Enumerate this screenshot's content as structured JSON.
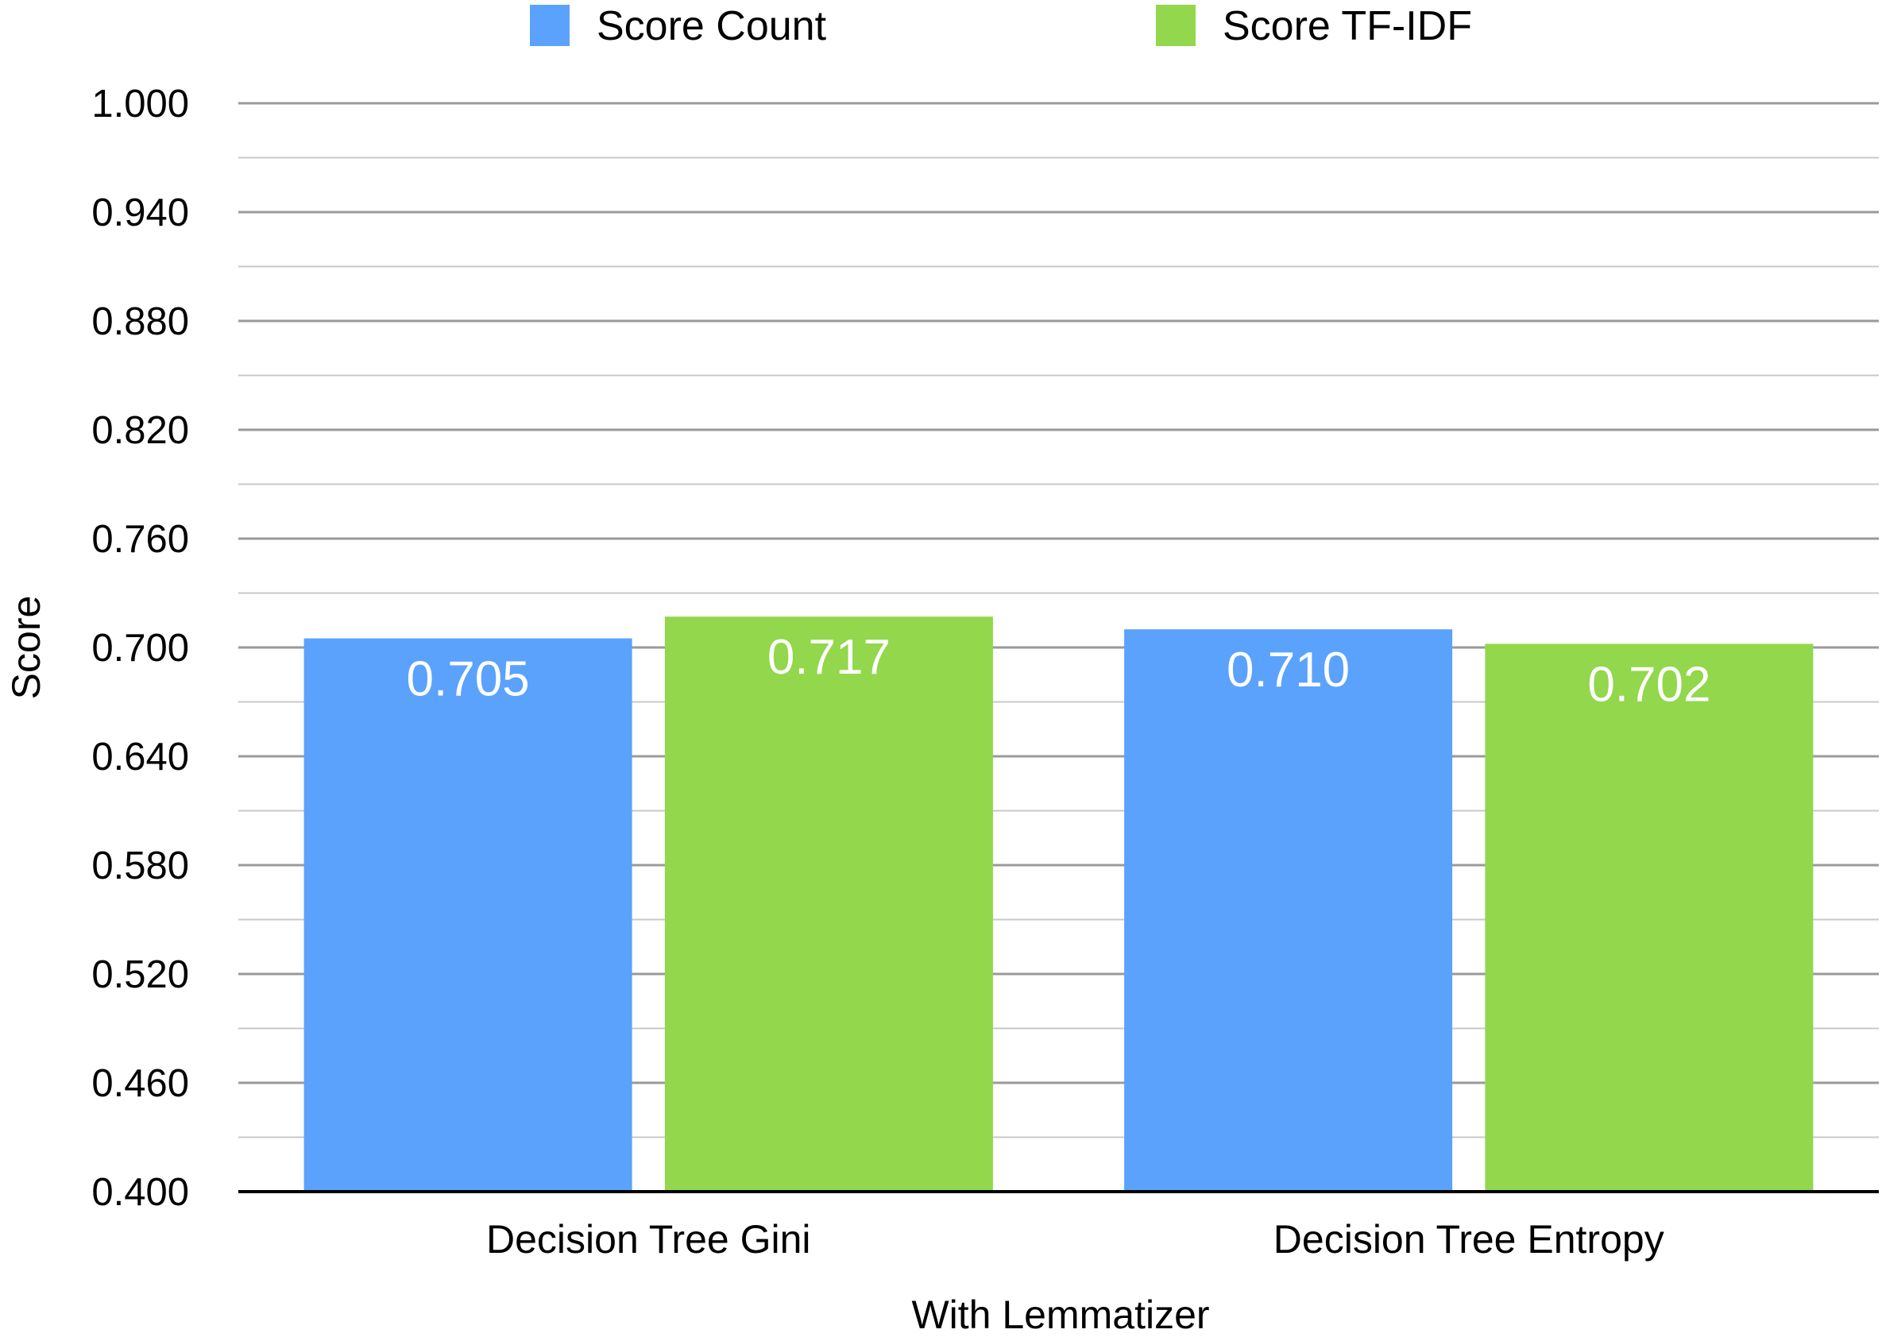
{
  "chart_data": {
    "type": "bar",
    "title": "",
    "xlabel": "With Lemmatizer",
    "ylabel": "Score",
    "categories": [
      "Decision Tree Gini",
      "Decision Tree Entropy"
    ],
    "series": [
      {
        "name": "Score Count",
        "values": [
          0.705,
          0.71
        ],
        "labels": [
          "0.705",
          "0.710"
        ],
        "color": "#5BA2FC"
      },
      {
        "name": "Score TF-IDF",
        "values": [
          0.717,
          0.702
        ],
        "labels": [
          "0.717",
          "0.702"
        ],
        "color": "#92D74C"
      }
    ],
    "ylim": [
      0.4,
      1.0
    ],
    "y_ticks": [
      1.0,
      0.94,
      0.88,
      0.82,
      0.76,
      0.7,
      0.64,
      0.58,
      0.52,
      0.46,
      0.4
    ],
    "y_tick_labels": [
      "1.000",
      "0.940",
      "0.880",
      "0.820",
      "0.760",
      "0.700",
      "0.640",
      "0.580",
      "0.520",
      "0.460",
      "0.400"
    ],
    "grid": true,
    "legend": "top-center"
  }
}
